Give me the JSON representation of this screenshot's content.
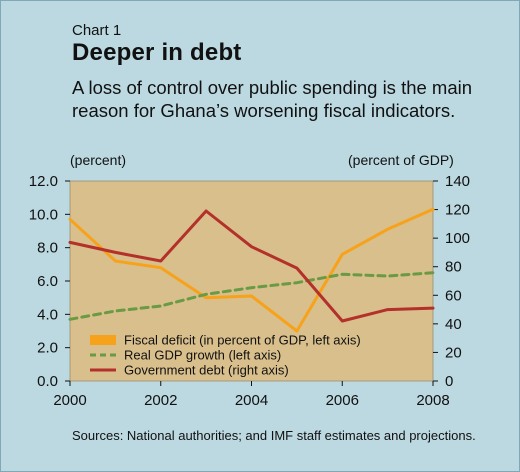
{
  "kicker": "Chart 1",
  "title": "Deeper in debt",
  "subtitle": "A loss of control over public spending is the main reason for Ghana’s worsening fiscal indicators.",
  "left_unit": "(percent)",
  "right_unit": "(percent of GDP)",
  "source": "Sources: National authorities; and IMF staff estimates and projections.",
  "colors": {
    "plot_bg": "#d9bf8c",
    "fiscal_deficit": "#f7a21b",
    "gdp_growth": "#6a9a44",
    "government_debt": "#b3302b"
  },
  "chart_data": {
    "type": "line",
    "x": [
      2000,
      2001,
      2002,
      2003,
      2004,
      2005,
      2006,
      2007,
      2008
    ],
    "xticks": [
      "2000",
      "2002",
      "2004",
      "2006",
      "2008"
    ],
    "xlim": [
      2000,
      2008
    ],
    "ylim_left": [
      0,
      12
    ],
    "ylim_right": [
      0,
      140
    ],
    "yticks_left": [
      "0.0",
      "2.0",
      "4.0",
      "6.0",
      "8.0",
      "10.0",
      "12.0"
    ],
    "yticks_right": [
      "0",
      "20",
      "40",
      "60",
      "80",
      "100",
      "120",
      "140"
    ],
    "grid": false,
    "legend_position": "bottom-left",
    "series": [
      {
        "name": "Fiscal deficit (in percent of GDP, left axis)",
        "axis": "left",
        "values": [
          9.7,
          7.2,
          6.8,
          5.0,
          5.1,
          3.0,
          7.6,
          9.1,
          10.3
        ]
      },
      {
        "name": "Real GDP growth (left axis)",
        "axis": "left",
        "values": [
          3.7,
          4.2,
          4.5,
          5.2,
          5.6,
          5.9,
          6.4,
          6.3,
          6.5
        ]
      },
      {
        "name": "Government debt (right axis)",
        "axis": "right",
        "values": [
          97,
          90,
          84,
          119,
          94,
          79,
          42,
          50,
          51
        ]
      }
    ]
  }
}
